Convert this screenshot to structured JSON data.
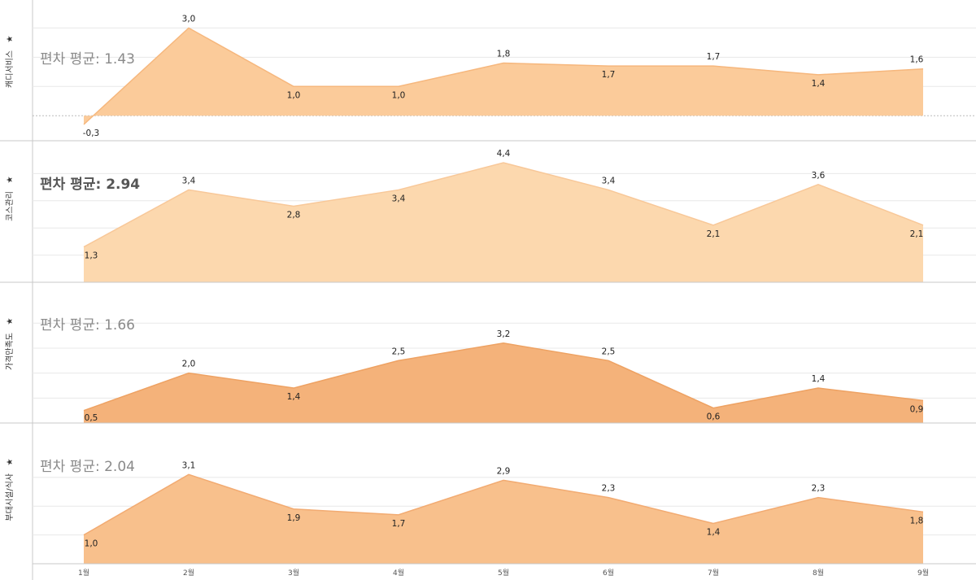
{
  "avg_prefix": "편차 평균: ",
  "pin_glyph": "★",
  "colors": {
    "fills": [
      "#fbcb9a",
      "#fcd8ae",
      "#f4b27a",
      "#f8c08c"
    ],
    "strokes": [
      "#f6b77d",
      "#f8c899",
      "#eea263",
      "#f2ab72"
    ],
    "gridline": "#e8e8e8",
    "separator": "#c9c9c9",
    "zero_line": "#bbbbbb"
  },
  "chart_data": [
    {
      "type": "area",
      "title": "캐디서비스",
      "avg_value": "1.43",
      "avg_bold": false,
      "categories": [
        "1월",
        "2월",
        "3월",
        "4월",
        "5월",
        "6월",
        "7월",
        "8월",
        "9월"
      ],
      "values": [
        -0.3,
        3.0,
        1.0,
        1.0,
        1.8,
        1.7,
        1.7,
        1.4,
        1.6
      ],
      "value_labels": [
        "-0,3",
        "3,0",
        "1,0",
        "1,0",
        "1,8",
        "1,7",
        "1,7",
        "1,4",
        "1,6"
      ],
      "label_pos": [
        "below",
        "above",
        "below",
        "below",
        "above",
        "below",
        "above",
        "below",
        "above"
      ],
      "ylim": [
        -0.3,
        3.4
      ],
      "gridlines": [
        0,
        1,
        2,
        3
      ]
    },
    {
      "type": "area",
      "title": "코스관리",
      "avg_value": "2.94",
      "avg_bold": true,
      "categories": [
        "1월",
        "2월",
        "3월",
        "4월",
        "5월",
        "6월",
        "7월",
        "8월",
        "9월"
      ],
      "values": [
        1.3,
        3.4,
        2.8,
        3.4,
        4.4,
        3.4,
        2.1,
        3.6,
        2.1
      ],
      "value_labels": [
        "1,3",
        "3,4",
        "2,8",
        "3,4",
        "4,4",
        "3,4",
        "2,1",
        "3,6",
        "2,1"
      ],
      "label_pos": [
        "below",
        "above",
        "below",
        "below",
        "above",
        "above",
        "below",
        "above",
        "below"
      ],
      "ylim": [
        0,
        5.0
      ],
      "gridlines": [
        1,
        2,
        3,
        4
      ]
    },
    {
      "type": "area",
      "title": "가격만족도",
      "avg_value": "1.66",
      "avg_bold": false,
      "categories": [
        "1월",
        "2월",
        "3월",
        "4월",
        "5월",
        "6월",
        "7월",
        "8월",
        "9월"
      ],
      "values": [
        0.5,
        2.0,
        1.4,
        2.5,
        3.2,
        2.5,
        0.6,
        1.4,
        0.9
      ],
      "value_labels": [
        "0,5",
        "2,0",
        "1,4",
        "2,5",
        "3,2",
        "2,5",
        "0,6",
        "1,4",
        "0,9"
      ],
      "label_pos": [
        "below",
        "above",
        "below",
        "above",
        "above",
        "above",
        "below",
        "above",
        "below"
      ],
      "ylim": [
        0,
        4.4
      ],
      "gridlines": [
        1,
        2,
        3,
        4
      ]
    },
    {
      "type": "area",
      "title": "부대시설/식사",
      "avg_value": "2.04",
      "avg_bold": false,
      "categories": [
        "1월",
        "2월",
        "3월",
        "4월",
        "5월",
        "6월",
        "7월",
        "8월",
        "9월"
      ],
      "values": [
        1.0,
        3.1,
        1.9,
        1.7,
        2.9,
        2.3,
        1.4,
        2.3,
        1.8
      ],
      "value_labels": [
        "1,0",
        "3,1",
        "1,9",
        "1,7",
        "2,9",
        "2,3",
        "1,4",
        "2,3",
        "1,8"
      ],
      "label_pos": [
        "below",
        "above",
        "below",
        "below",
        "above",
        "above",
        "below",
        "above",
        "below"
      ],
      "ylim": [
        0,
        3.9
      ],
      "gridlines": [
        1,
        2,
        3
      ]
    }
  ]
}
